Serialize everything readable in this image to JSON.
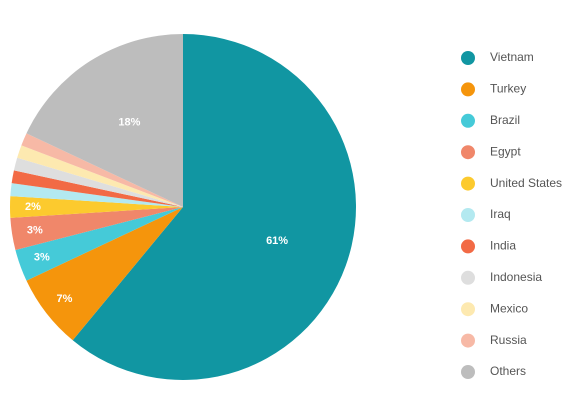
{
  "chart_data": {
    "type": "pie",
    "categories": [
      "Vietnam",
      "Turkey",
      "Brazil",
      "Egypt",
      "United States",
      "Iraq",
      "India",
      "Indonesia",
      "Mexico",
      "Russia",
      "Others"
    ],
    "values": [
      61,
      7,
      3,
      3,
      2,
      1.2,
      1.2,
      1.2,
      1.2,
      1.2,
      18
    ],
    "value_labels": [
      "61%",
      "7%",
      "3%",
      "3%",
      "2%",
      null,
      null,
      null,
      null,
      null,
      "18%"
    ],
    "colors": [
      "#1196a2",
      "#f5950c",
      "#45cad8",
      "#f0876a",
      "#fcca2e",
      "#b3e9f0",
      "#f26a45",
      "#dedede",
      "#fde9b0",
      "#f7b9a6",
      "#bdbdbd"
    ],
    "legend": "right"
  }
}
